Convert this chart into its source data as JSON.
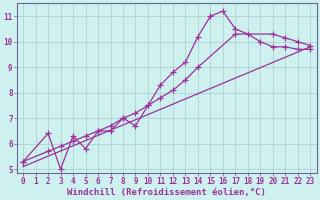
{
  "xlabel": "Windchill (Refroidissement éolien,°C)",
  "bg_color": "#cef0ee",
  "grid_color": "#aacccc",
  "line_color": "#993399",
  "spine_color": "#666699",
  "text_color": "#993399",
  "xlim": [
    -0.5,
    23.5
  ],
  "ylim": [
    4.85,
    11.5
  ],
  "xticks": [
    0,
    1,
    2,
    3,
    4,
    5,
    6,
    7,
    8,
    9,
    10,
    11,
    12,
    13,
    14,
    15,
    16,
    17,
    18,
    19,
    20,
    21,
    22,
    23
  ],
  "yticks": [
    5,
    6,
    7,
    8,
    9,
    10,
    11
  ],
  "line1_x": [
    0,
    2,
    3,
    4,
    5,
    6,
    7,
    8,
    9,
    10,
    11,
    12,
    13,
    14,
    15,
    16,
    17,
    18,
    19,
    20,
    21,
    22,
    23
  ],
  "line1_y": [
    5.3,
    6.4,
    5.0,
    6.3,
    5.8,
    6.5,
    6.5,
    7.0,
    6.7,
    7.5,
    8.3,
    8.8,
    9.2,
    10.2,
    11.0,
    11.2,
    10.5,
    10.3,
    10.0,
    9.8,
    9.8,
    9.7,
    9.7
  ],
  "line2_x": [
    0,
    2,
    3,
    4,
    5,
    6,
    7,
    8,
    9,
    10,
    11,
    12,
    13,
    14,
    17,
    20,
    21,
    22,
    23
  ],
  "line2_y": [
    5.3,
    5.7,
    5.9,
    6.1,
    6.3,
    6.5,
    6.7,
    7.0,
    7.2,
    7.5,
    7.8,
    8.1,
    8.5,
    9.0,
    10.3,
    10.3,
    10.15,
    10.0,
    9.85
  ],
  "line3_x": [
    0,
    23
  ],
  "line3_y": [
    5.1,
    9.8
  ],
  "marker": "+",
  "markersize": 4,
  "linewidth": 0.9,
  "tick_fontsize": 5.5,
  "label_fontsize": 6.5
}
